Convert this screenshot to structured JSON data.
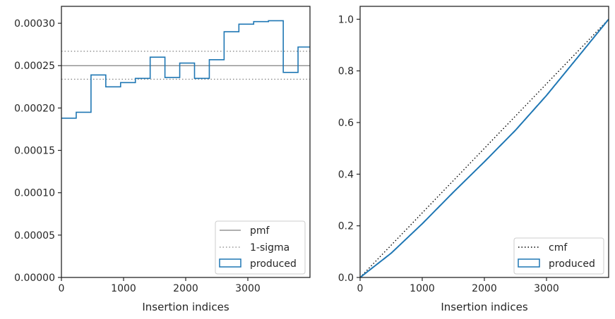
{
  "chart_data": [
    {
      "type": "histogram-step",
      "xlabel": "Insertion indices",
      "ylabel": "",
      "xlim": [
        0,
        4000
      ],
      "ylim": [
        0,
        0.00032
      ],
      "xticks": [
        0,
        1000,
        2000,
        3000
      ],
      "xtick_labels": [
        "0",
        "1000",
        "2000",
        "3000"
      ],
      "yticks": [
        0,
        5e-05,
        0.0001,
        0.00015,
        0.0002,
        0.00025,
        0.0003
      ],
      "ytick_labels": [
        "0.00000",
        "0.00005",
        "0.00010",
        "0.00015",
        "0.00020",
        "0.00025",
        "0.00030"
      ],
      "grid": false,
      "legend_position": "lower-right",
      "pmf": 0.00025,
      "sigma_lower": 0.000234,
      "sigma_upper": 0.000267,
      "bin_edges": [
        0,
        238,
        476,
        714,
        952,
        1190,
        1428,
        1666,
        1904,
        2142,
        2380,
        2618,
        2856,
        3094,
        3332,
        3570,
        3808,
        4000
      ],
      "produced": [
        0.000188,
        0.000195,
        0.000239,
        0.000225,
        0.00023,
        0.000235,
        0.00026,
        0.000236,
        0.000253,
        0.000235,
        0.000257,
        0.00029,
        0.000299,
        0.000302,
        0.000303,
        0.000242,
        0.000272
      ],
      "series": [
        {
          "name": "pmf",
          "style": "solid",
          "color": "#808080"
        },
        {
          "name": "1-sigma",
          "style": "dotted",
          "color": "#808080"
        },
        {
          "name": "produced",
          "style": "step",
          "color": "#1f77b4"
        }
      ]
    },
    {
      "type": "line",
      "xlabel": "Insertion indices",
      "ylabel": "",
      "xlim": [
        0,
        4000
      ],
      "ylim": [
        0,
        1.05
      ],
      "xticks": [
        0,
        1000,
        2000,
        3000
      ],
      "xtick_labels": [
        "0",
        "1000",
        "2000",
        "3000"
      ],
      "yticks": [
        0,
        0.2,
        0.4,
        0.6,
        0.8,
        1.0
      ],
      "ytick_labels": [
        "0.0",
        "0.2",
        "0.4",
        "0.6",
        "0.8",
        "1.0"
      ],
      "grid": false,
      "legend_position": "lower-right",
      "cmf": {
        "x": [
          0,
          4000
        ],
        "y": [
          0,
          1.0
        ]
      },
      "produced": {
        "x": [
          0,
          500,
          1000,
          1500,
          2000,
          2500,
          3000,
          3500,
          4000
        ],
        "y": [
          0,
          0.094,
          0.208,
          0.33,
          0.448,
          0.57,
          0.705,
          0.852,
          1.0
        ]
      },
      "series": [
        {
          "name": "cmf",
          "style": "dotted",
          "color": "#000000"
        },
        {
          "name": "produced",
          "style": "step",
          "color": "#1f77b4"
        }
      ]
    }
  ],
  "colors": {
    "produced": "#1f77b4",
    "reference": "#808080",
    "cmf": "#000000",
    "axes": "#262626"
  }
}
